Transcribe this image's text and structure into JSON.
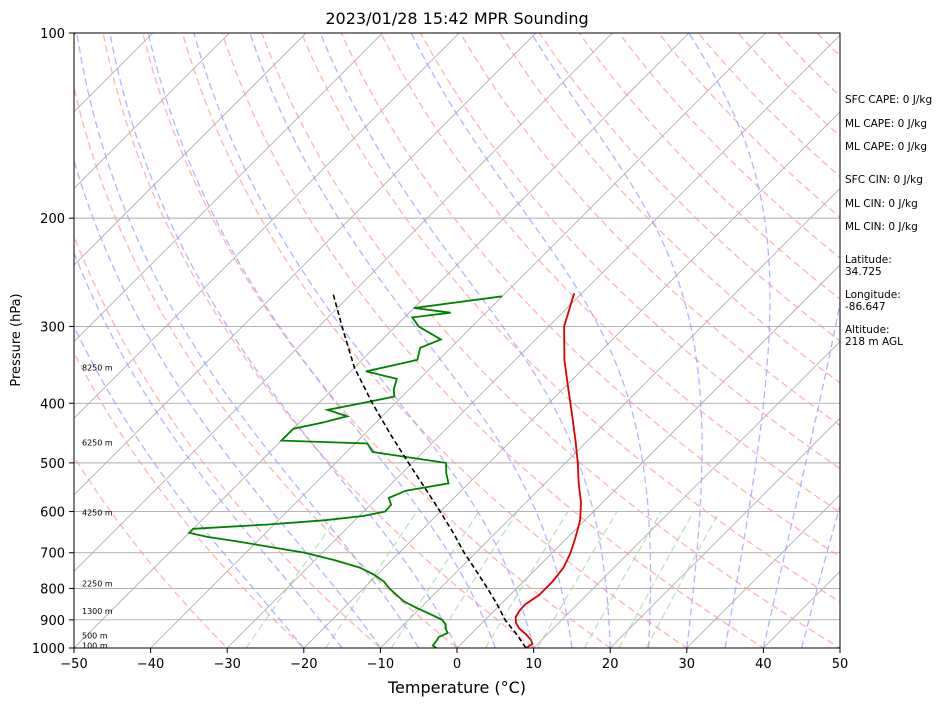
{
  "chart_data": {
    "type": "line",
    "title": "2023/01/28 15:42 MPR Sounding",
    "xlabel": "Temperature (°C)",
    "ylabel": "Pressure (hPa)",
    "xlim": [
      -50,
      50
    ],
    "ylim": [
      1000,
      100
    ],
    "y_scale": "log",
    "grid": true,
    "x_ticks": [
      "−50",
      "−40",
      "−30",
      "−20",
      "−10",
      "0",
      "10",
      "20",
      "30",
      "40",
      "50"
    ],
    "y_ticks": [
      "100",
      "200",
      "300",
      "400",
      "500",
      "600",
      "700",
      "800",
      "900",
      "1000"
    ],
    "colors": {
      "temperature": "#e00000",
      "dewpoint": "#008000",
      "parcel": "#000000",
      "dry_adiabats": "#ff9a9a",
      "moist_adiabats": "#9a9aff",
      "mixing_ratio": "#8fcf8f",
      "isotherms": "#999999"
    },
    "series": [
      {
        "points": [
          [
            1000,
            9.0
          ],
          [
            985,
            9.3
          ],
          [
            970,
            8.6
          ],
          [
            950,
            7.2
          ],
          [
            930,
            5.6
          ],
          [
            910,
            4.4
          ],
          [
            890,
            3.6
          ],
          [
            870,
            3.3
          ],
          [
            850,
            3.2
          ],
          [
            820,
            3.8
          ],
          [
            780,
            3.8
          ],
          [
            740,
            3.4
          ],
          [
            700,
            2.4
          ],
          [
            660,
            1.0
          ],
          [
            620,
            -0.6
          ],
          [
            580,
            -2.8
          ],
          [
            540,
            -5.6
          ],
          [
            500,
            -8.4
          ],
          [
            460,
            -11.6
          ],
          [
            420,
            -15.2
          ],
          [
            380,
            -19.2
          ],
          [
            340,
            -23.6
          ],
          [
            300,
            -28.0
          ],
          [
            265,
            -31.0
          ]
        ]
      },
      {
        "points": [
          [
            1000,
            -2.7
          ],
          [
            990,
            -3.5
          ],
          [
            975,
            -3.6
          ],
          [
            960,
            -3.8
          ],
          [
            945,
            -3.2
          ],
          [
            930,
            -4.0
          ],
          [
            915,
            -4.6
          ],
          [
            900,
            -5.6
          ],
          [
            880,
            -8.0
          ],
          [
            860,
            -10.6
          ],
          [
            840,
            -13.0
          ],
          [
            820,
            -14.8
          ],
          [
            800,
            -16.6
          ],
          [
            780,
            -18.2
          ],
          [
            760,
            -20.4
          ],
          [
            740,
            -23.2
          ],
          [
            720,
            -27.4
          ],
          [
            700,
            -32.3
          ],
          [
            670,
            -43.0
          ],
          [
            660,
            -47.0
          ],
          [
            650,
            -50.0
          ],
          [
            640,
            -50.0
          ],
          [
            630,
            -41.0
          ],
          [
            620,
            -34.0
          ],
          [
            610,
            -29.5
          ],
          [
            600,
            -27.2
          ],
          [
            585,
            -27.3
          ],
          [
            570,
            -28.5
          ],
          [
            555,
            -27.2
          ],
          [
            540,
            -22.6
          ],
          [
            520,
            -24.2
          ],
          [
            500,
            -25.6
          ],
          [
            480,
            -36.6
          ],
          [
            465,
            -38.4
          ],
          [
            460,
            -50.0
          ],
          [
            440,
            -50.0
          ],
          [
            430,
            -47.0
          ],
          [
            420,
            -44.6
          ],
          [
            410,
            -48.0
          ],
          [
            400,
            -44.4
          ],
          [
            390,
            -41.0
          ],
          [
            380,
            -42.0
          ],
          [
            365,
            -43.0
          ],
          [
            355,
            -48.0
          ],
          [
            340,
            -42.8
          ],
          [
            325,
            -44.0
          ],
          [
            315,
            -42.4
          ],
          [
            300,
            -47.0
          ],
          [
            290,
            -49.0
          ],
          [
            285,
            -44.6
          ],
          [
            280,
            -50.0
          ],
          [
            268,
            -40.0
          ]
        ]
      },
      {
        "points": [
          [
            1000,
            9.0
          ],
          [
            950,
            6.0
          ],
          [
            900,
            2.6
          ],
          [
            850,
            -0.4
          ],
          [
            800,
            -3.8
          ],
          [
            750,
            -7.5
          ],
          [
            700,
            -11.5
          ],
          [
            650,
            -15.5
          ],
          [
            600,
            -20.0
          ],
          [
            550,
            -25.0
          ],
          [
            500,
            -30.5
          ],
          [
            450,
            -36.5
          ],
          [
            400,
            -43.0
          ],
          [
            350,
            -50.0
          ],
          [
            300,
            -57.0
          ],
          [
            265,
            -62.5
          ]
        ]
      }
    ],
    "height_labels": [
      {
        "p": 350,
        "label": "8250 m"
      },
      {
        "p": 463,
        "label": "6250 m"
      },
      {
        "p": 602,
        "label": "4250 m"
      },
      {
        "p": 785,
        "label": "2250 m"
      },
      {
        "p": 870,
        "label": "1300 m"
      },
      {
        "p": 955,
        "label": "500 m"
      },
      {
        "p": 990,
        "label": "100 m"
      }
    ]
  },
  "info": {
    "sfc_cape": "SFC CAPE: 0 J/kg",
    "ml_cape_1": "ML CAPE: 0 J/kg",
    "ml_cape_2": "ML CAPE: 0 J/kg",
    "sfc_cin": "SFC CIN: 0 J/kg",
    "ml_cin_1": "ML CIN: 0 J/kg",
    "ml_cin_2": "ML CIN: 0 J/kg",
    "latitude": "Latitude:\n34.725",
    "longitude": "Longitude:\n-86.647",
    "altitude": "Altitude:\n218 m AGL"
  }
}
